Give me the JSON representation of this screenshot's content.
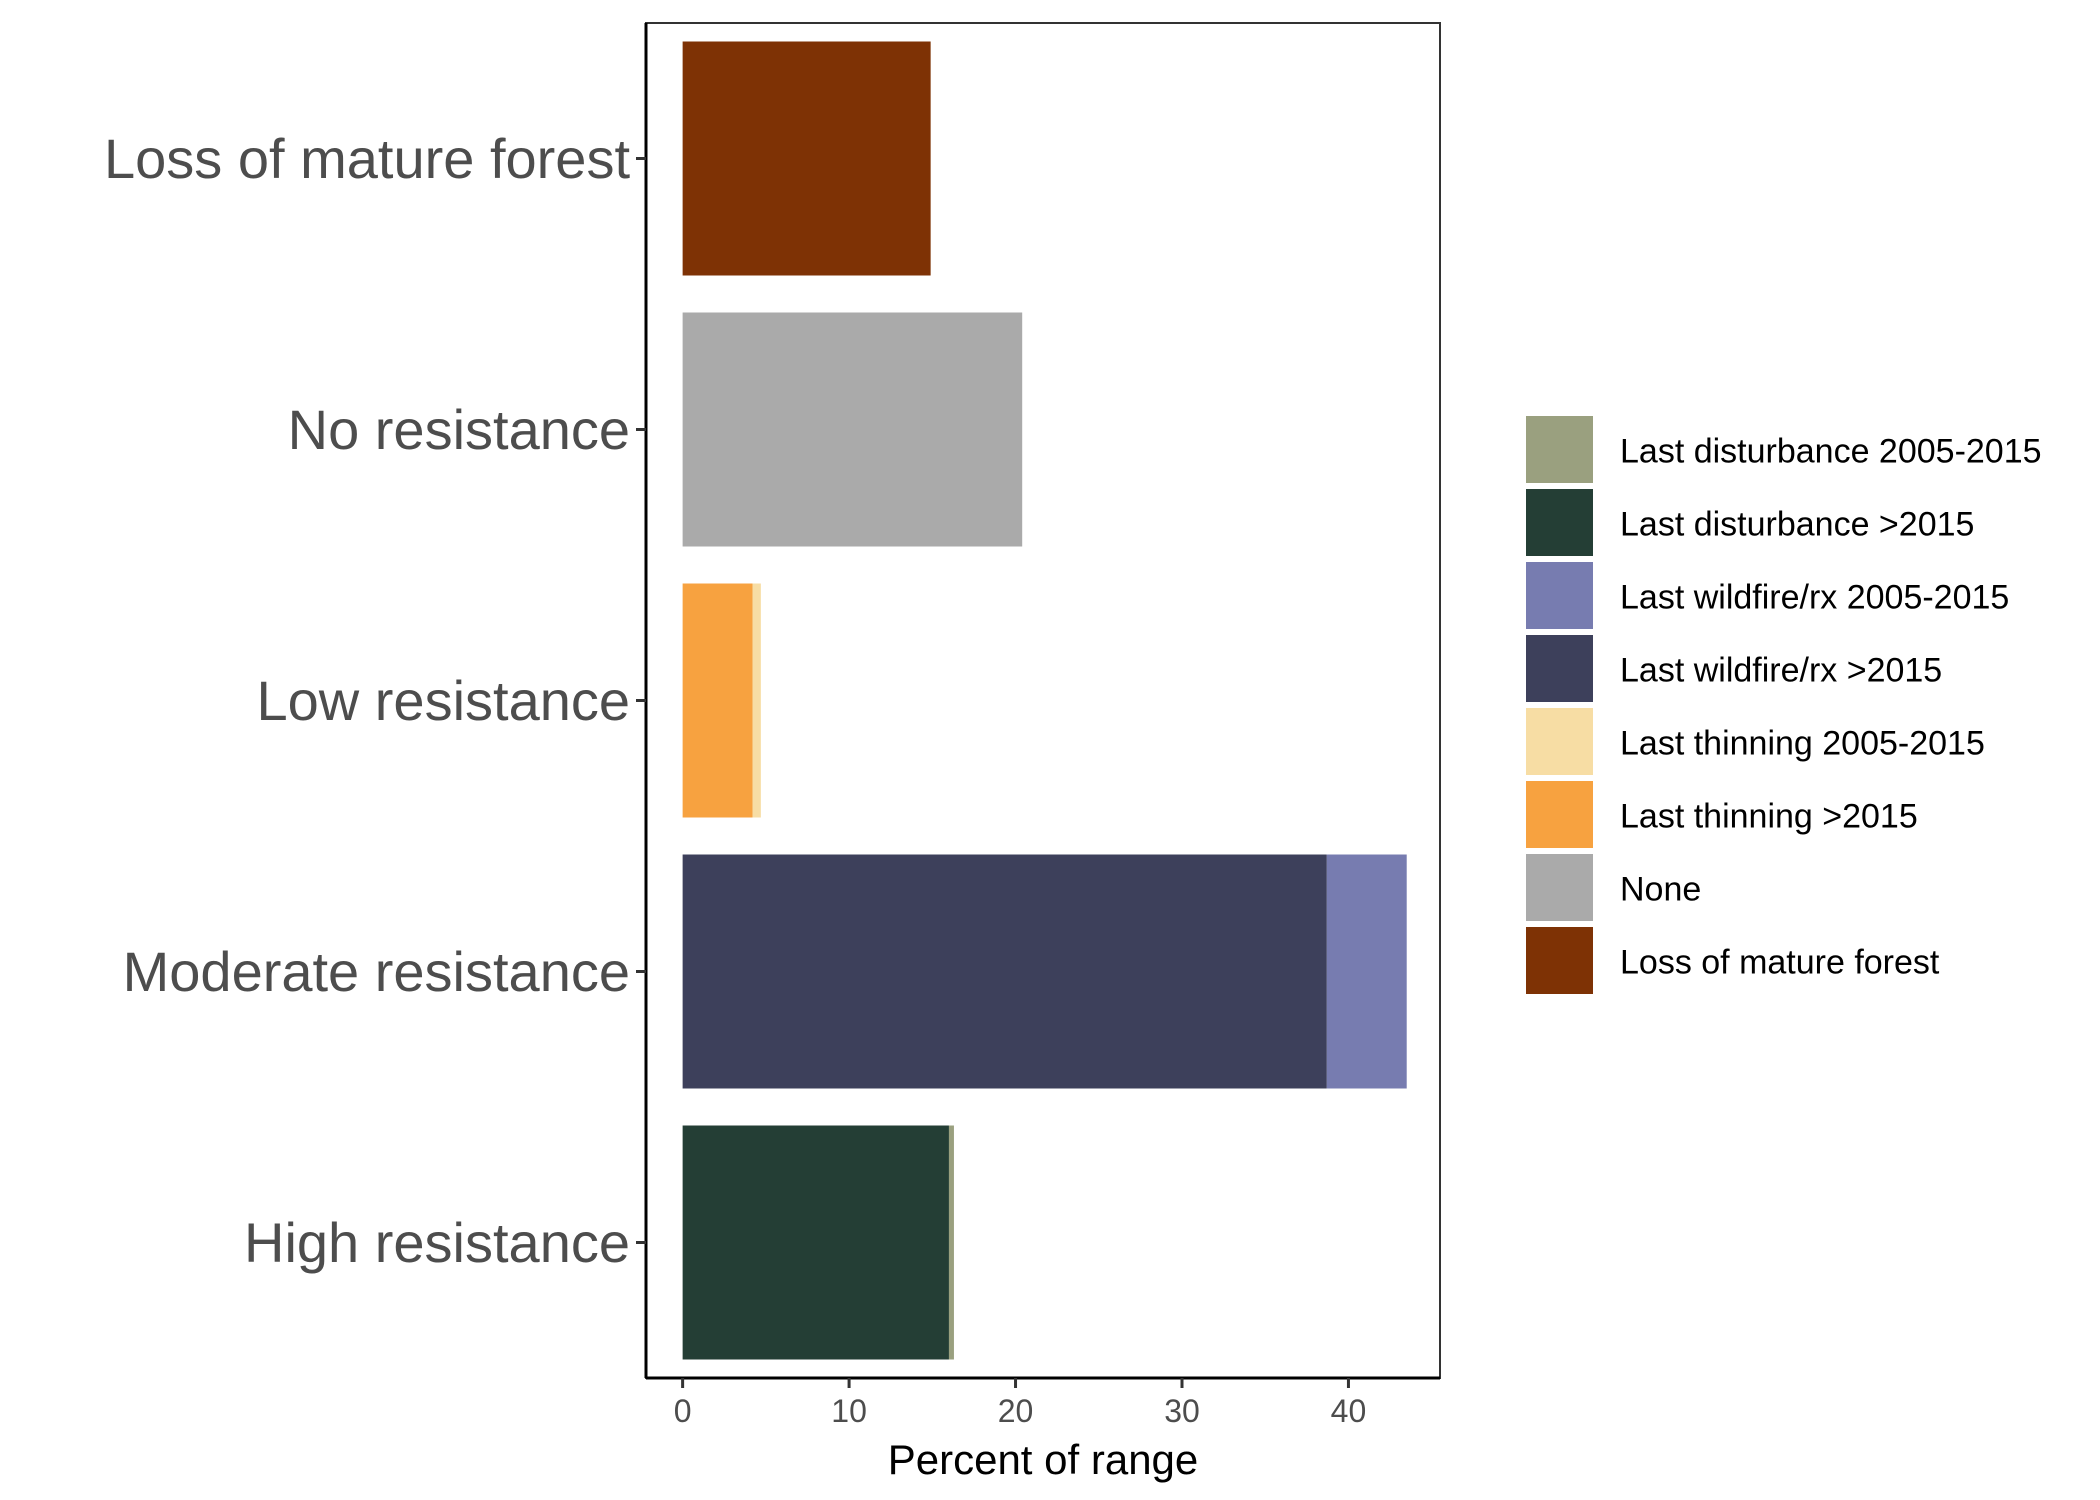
{
  "chart_data": {
    "type": "bar",
    "orientation": "horizontal",
    "stacked": true,
    "xlabel": "Percent of range",
    "ylabel": "",
    "xlim": [
      -2.2,
      45.5
    ],
    "xticks": [
      0,
      10,
      20,
      30,
      40
    ],
    "xtick_labels": [
      "0",
      "10",
      "20",
      "30",
      "40"
    ],
    "grid": false,
    "legend_position": "right",
    "categories": [
      "Loss of mature forest",
      "No resistance",
      "Low resistance",
      "Moderate resistance",
      "High resistance"
    ],
    "series": [
      {
        "name": "Last disturbance 2005-2015",
        "color": "#9aa07f",
        "values": [
          0,
          0,
          0,
          0,
          0.3
        ]
      },
      {
        "name": "Last disturbance >2015",
        "color": "#243e35",
        "values": [
          0,
          0,
          0,
          0,
          16.0
        ]
      },
      {
        "name": "Last wildfire/rx 2005-2015",
        "color": "#777cb0",
        "values": [
          0,
          0,
          0,
          4.8,
          0
        ]
      },
      {
        "name": "Last wildfire/rx >2015",
        "color": "#3d405b",
        "values": [
          0,
          0,
          0,
          38.7,
          0
        ]
      },
      {
        "name": "Last thinning 2005-2015",
        "color": "#f7dda4",
        "values": [
          0,
          0,
          0.5,
          0,
          0
        ]
      },
      {
        "name": "Last thinning >2015",
        "color": "#f7a240",
        "values": [
          0,
          0,
          4.2,
          0,
          0
        ]
      },
      {
        "name": "None",
        "color": "#aaaaaa",
        "values": [
          0,
          20.4,
          0,
          0,
          0
        ]
      },
      {
        "name": "Loss of mature forest",
        "color": "#7e3205",
        "values": [
          14.9,
          0,
          0,
          0,
          0
        ]
      }
    ],
    "stack_order": [
      "Last disturbance >2015",
      "Last disturbance 2005-2015",
      "Last wildfire/rx >2015",
      "Last wildfire/rx 2005-2015",
      "Last thinning >2015",
      "Last thinning 2005-2015",
      "None",
      "Loss of mature forest"
    ]
  }
}
